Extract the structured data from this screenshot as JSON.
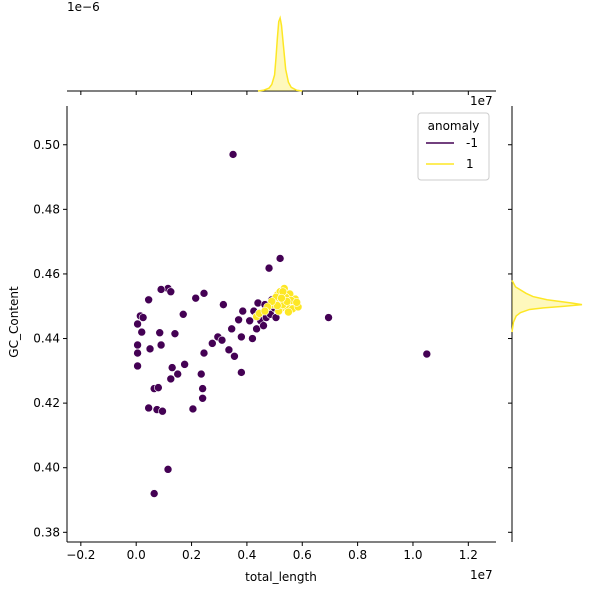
{
  "chart_data": {
    "type": "scatter",
    "title": "",
    "xlabel": "total_length",
    "ylabel": "GC_Content",
    "x_scale_label": "1e7",
    "top_scale_label": "1e−6",
    "right_scale_label": "1e7",
    "xlim": [
      -0.25,
      1.3
    ],
    "ylim": [
      0.377,
      0.512
    ],
    "xticks": [
      -0.2,
      0.0,
      0.2,
      0.4,
      0.6,
      0.8,
      1.0,
      1.2
    ],
    "xtick_labels": [
      "−0.2",
      "0.0",
      "0.2",
      "0.4",
      "0.6",
      "0.8",
      "1.0",
      "1.2"
    ],
    "yticks": [
      0.38,
      0.4,
      0.42,
      0.44,
      0.46,
      0.48,
      0.5
    ],
    "ytick_labels": [
      "0.38",
      "0.40",
      "0.42",
      "0.44",
      "0.46",
      "0.48",
      "0.50"
    ],
    "grid": false,
    "legend": {
      "title": "anomaly",
      "placement": "top-right"
    },
    "colors": {
      "anomaly_neg": "#440154",
      "normal": "#fde725",
      "normal_fill": "#fde725"
    },
    "series": [
      {
        "name": "-1",
        "color": "#440154",
        "points": [
          [
            0.35,
            0.497
          ],
          [
            0.52,
            0.4648
          ],
          [
            0.48,
            0.4618
          ],
          [
            0.695,
            0.4465
          ],
          [
            1.05,
            0.4352
          ],
          [
            0.115,
            0.4555
          ],
          [
            0.125,
            0.4545
          ],
          [
            0.09,
            0.4552
          ],
          [
            0.215,
            0.4525
          ],
          [
            0.245,
            0.454
          ],
          [
            0.045,
            0.452
          ],
          [
            0.015,
            0.447
          ],
          [
            0.025,
            0.4465
          ],
          [
            0.005,
            0.4445
          ],
          [
            0.02,
            0.442
          ],
          [
            0.005,
            0.438
          ],
          [
            0.005,
            0.4355
          ],
          [
            0.05,
            0.4368
          ],
          [
            0.005,
            0.4315
          ],
          [
            0.09,
            0.438
          ],
          [
            0.085,
            0.4418
          ],
          [
            0.14,
            0.4415
          ],
          [
            0.17,
            0.4475
          ],
          [
            0.045,
            0.4185
          ],
          [
            0.065,
            0.4245
          ],
          [
            0.08,
            0.4248
          ],
          [
            0.075,
            0.418
          ],
          [
            0.095,
            0.4175
          ],
          [
            0.13,
            0.431
          ],
          [
            0.125,
            0.4275
          ],
          [
            0.15,
            0.429
          ],
          [
            0.175,
            0.432
          ],
          [
            0.205,
            0.4182
          ],
          [
            0.235,
            0.429
          ],
          [
            0.24,
            0.4245
          ],
          [
            0.24,
            0.4215
          ],
          [
            0.245,
            0.4355
          ],
          [
            0.275,
            0.4385
          ],
          [
            0.295,
            0.4405
          ],
          [
            0.31,
            0.4395
          ],
          [
            0.315,
            0.4505
          ],
          [
            0.335,
            0.4365
          ],
          [
            0.345,
            0.443
          ],
          [
            0.355,
            0.4345
          ],
          [
            0.37,
            0.4458
          ],
          [
            0.38,
            0.4405
          ],
          [
            0.38,
            0.4295
          ],
          [
            0.385,
            0.4485
          ],
          [
            0.41,
            0.4455
          ],
          [
            0.42,
            0.44
          ],
          [
            0.425,
            0.4485
          ],
          [
            0.435,
            0.443
          ],
          [
            0.44,
            0.451
          ],
          [
            0.45,
            0.4455
          ],
          [
            0.46,
            0.444
          ],
          [
            0.465,
            0.4505
          ],
          [
            0.47,
            0.4465
          ],
          [
            0.485,
            0.4475
          ],
          [
            0.49,
            0.452
          ],
          [
            0.505,
            0.4465
          ],
          [
            0.115,
            0.3995
          ],
          [
            0.065,
            0.392
          ],
          [
            0.5,
            0.4495
          ]
        ]
      },
      {
        "name": "1",
        "color": "#fde725",
        "points": [
          [
            0.5,
            0.452
          ],
          [
            0.51,
            0.4535
          ],
          [
            0.52,
            0.4545
          ],
          [
            0.53,
            0.452
          ],
          [
            0.54,
            0.451
          ],
          [
            0.55,
            0.4525
          ],
          [
            0.56,
            0.4505
          ],
          [
            0.57,
            0.4515
          ],
          [
            0.525,
            0.4495
          ],
          [
            0.545,
            0.4498
          ],
          [
            0.565,
            0.4492
          ],
          [
            0.515,
            0.4485
          ],
          [
            0.495,
            0.4505
          ],
          [
            0.535,
            0.4555
          ],
          [
            0.555,
            0.4538
          ],
          [
            0.575,
            0.4522
          ],
          [
            0.585,
            0.4498
          ],
          [
            0.505,
            0.4528
          ],
          [
            0.52,
            0.4512
          ],
          [
            0.54,
            0.4528
          ],
          [
            0.56,
            0.4518
          ],
          [
            0.53,
            0.4505
          ],
          [
            0.55,
            0.4482
          ],
          [
            0.51,
            0.4502
          ],
          [
            0.58,
            0.4512
          ],
          [
            0.49,
            0.4515
          ],
          [
            0.475,
            0.4498
          ],
          [
            0.53,
            0.4545
          ],
          [
            0.545,
            0.4515
          ],
          [
            0.525,
            0.4525
          ],
          [
            0.435,
            0.4468
          ],
          [
            0.445,
            0.4478
          ],
          [
            0.465,
            0.4485
          ]
        ]
      }
    ],
    "marginal_x_density": {
      "series": "1",
      "x": [
        0.44,
        0.46,
        0.48,
        0.49,
        0.5,
        0.505,
        0.51,
        0.515,
        0.52,
        0.525,
        0.53,
        0.535,
        0.54,
        0.55,
        0.56,
        0.58,
        0.6
      ],
      "density": [
        0.0,
        0.01,
        0.04,
        0.09,
        0.22,
        0.45,
        0.72,
        0.95,
        1.0,
        0.9,
        0.7,
        0.5,
        0.3,
        0.12,
        0.05,
        0.01,
        0.0
      ]
    },
    "marginal_y_density": {
      "series": "1",
      "y": [
        0.442,
        0.445,
        0.447,
        0.448,
        0.449,
        0.4495,
        0.45,
        0.4505,
        0.451,
        0.452,
        0.453,
        0.454,
        0.456,
        0.458
      ],
      "density": [
        0.0,
        0.02,
        0.06,
        0.12,
        0.25,
        0.45,
        0.75,
        1.0,
        0.85,
        0.5,
        0.3,
        0.2,
        0.05,
        0.0
      ]
    }
  }
}
